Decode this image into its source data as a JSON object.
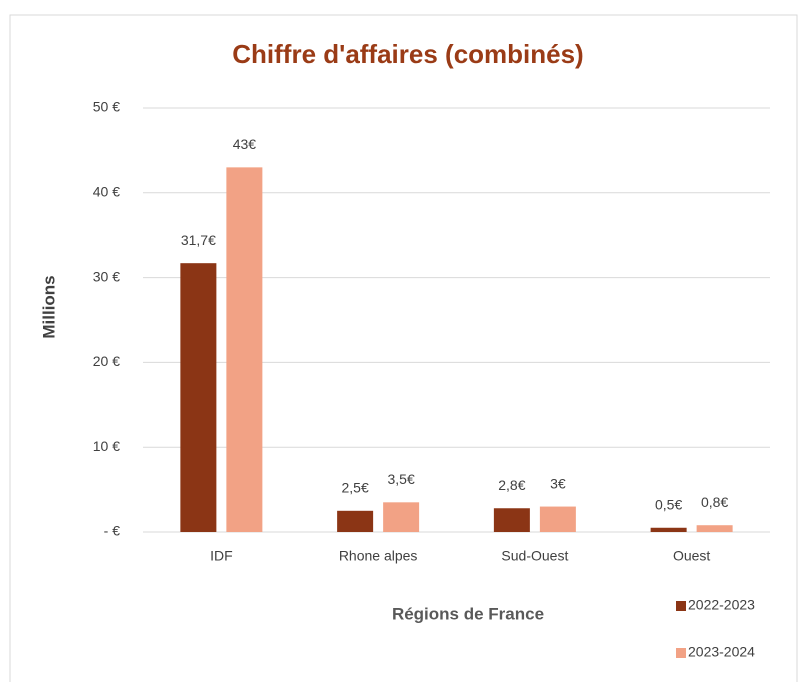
{
  "chart_data": {
    "type": "bar",
    "title": "Chiffre d'affaires (combinés)",
    "xlabel": "Régions de France",
    "ylabel": "Millions",
    "categories": [
      "IDF",
      "Rhone alpes",
      "Sud-Ouest",
      "Ouest"
    ],
    "series": [
      {
        "name": "2022-2023",
        "color": "#8b3515",
        "values": [
          31.7,
          2.5,
          2.8,
          0.5
        ],
        "value_labels": [
          "31,7€",
          "2,5€",
          "2,8€",
          "0,5€"
        ]
      },
      {
        "name": "2023-2024",
        "color": "#f2a285",
        "values": [
          43,
          3.5,
          3,
          0.8
        ],
        "value_labels": [
          "43€",
          "3,5€",
          "3€",
          "0,8€"
        ]
      }
    ],
    "ylim": [
      0,
      50
    ],
    "yticks": [
      {
        "value": 0,
        "label": "-   €"
      },
      {
        "value": 10,
        "label": "10 €"
      },
      {
        "value": 20,
        "label": "20 €"
      },
      {
        "value": 30,
        "label": "30 €"
      },
      {
        "value": 40,
        "label": "40 €"
      },
      {
        "value": 50,
        "label": "50 €"
      }
    ],
    "grid": true,
    "legend": "bottom-right"
  }
}
